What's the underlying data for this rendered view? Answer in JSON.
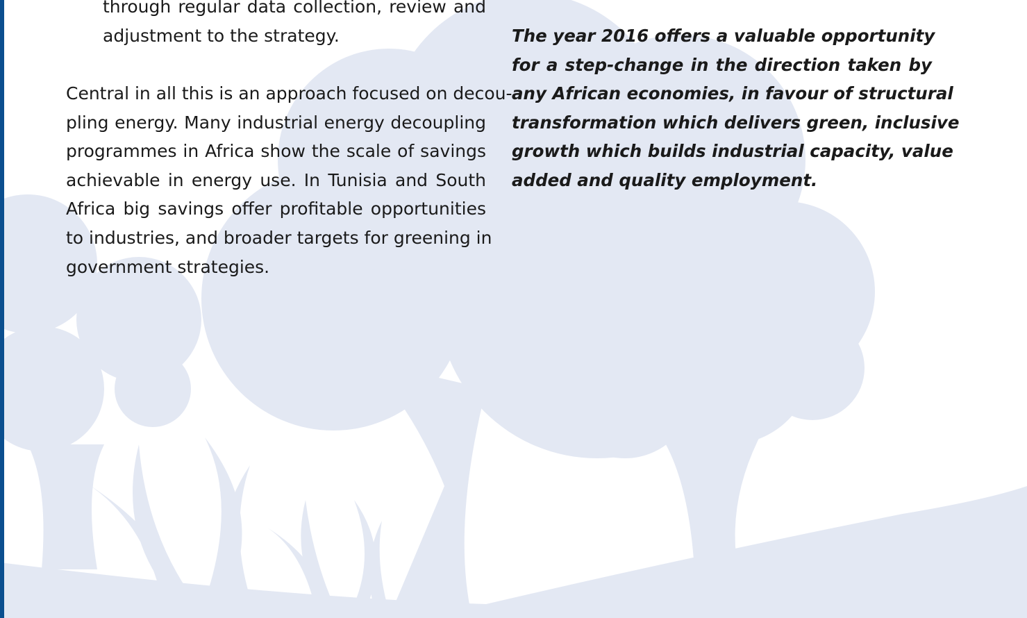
{
  "left_column": {
    "list_continuation": [
      "through regular data collection, review and",
      "adjustment to the strategy."
    ],
    "paragraph": [
      "Central in all this is an approach focused on decou-",
      "pling energy. Many industrial energy decoupling",
      "programmes in Africa show the scale of savings",
      "achievable in energy use. In Tunisia and South",
      "Africa big savings offer profitable opportunities",
      "to industries, and broader targets for greening in",
      "government strategies."
    ]
  },
  "right_column": {
    "callout": [
      "The year 2016 offers a valuable opportunity",
      "for a step-change in the direction taken by",
      "any African economies, in favour of structural",
      "transformation which delivers green, inclusive",
      "growth which builds industrial capacity, value",
      "added and quality employment."
    ]
  }
}
